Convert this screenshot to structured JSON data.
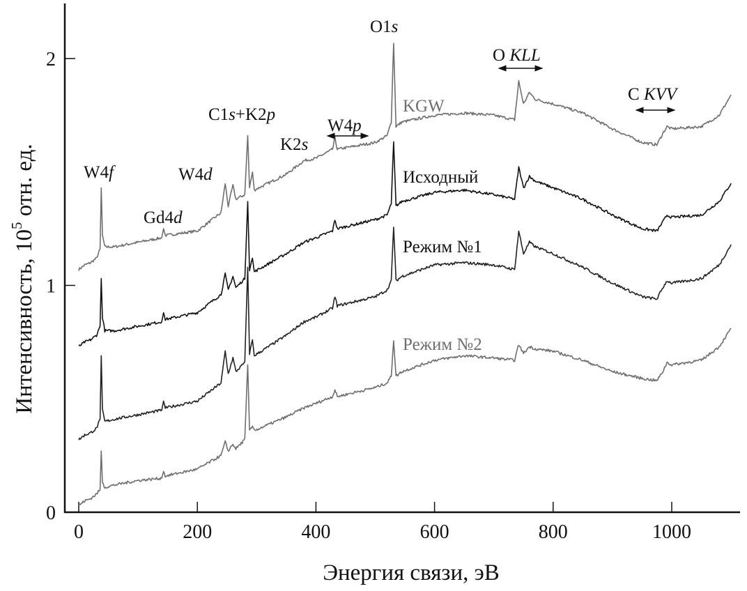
{
  "chart_data": {
    "type": "line",
    "title": "",
    "xlabel": "Энергия связи, эВ",
    "ylabel_main": "Интенсивность, 10",
    "ylabel_sup": "5",
    "ylabel_tail": " отн. ед.",
    "xlim": [
      -10,
      1110
    ],
    "ylim": [
      0,
      2.25
    ],
    "xticks": [
      0,
      200,
      400,
      600,
      800,
      1000
    ],
    "xtick_labels": [
      "0",
      "200",
      "400",
      "600",
      "800",
      "1000"
    ],
    "yticks": [
      0,
      1,
      2
    ],
    "ytick_labels": [
      "0",
      "1",
      "2"
    ],
    "grid": false,
    "series": [
      {
        "name": "KGW",
        "color": "#6e6e6e",
        "points": [
          [
            0,
            1.07
          ],
          [
            10,
            1.09
          ],
          [
            20,
            1.1
          ],
          [
            30,
            1.12
          ],
          [
            36,
            1.16
          ],
          [
            38,
            1.43
          ],
          [
            40,
            1.22
          ],
          [
            44,
            1.17
          ],
          [
            60,
            1.17
          ],
          [
            100,
            1.19
          ],
          [
            140,
            1.21
          ],
          [
            143,
            1.25
          ],
          [
            146,
            1.22
          ],
          [
            200,
            1.24
          ],
          [
            240,
            1.32
          ],
          [
            247,
            1.45
          ],
          [
            252,
            1.35
          ],
          [
            260,
            1.44
          ],
          [
            265,
            1.38
          ],
          [
            280,
            1.4
          ],
          [
            285,
            1.66
          ],
          [
            288,
            1.43
          ],
          [
            293,
            1.5
          ],
          [
            296,
            1.42
          ],
          [
            350,
            1.49
          ],
          [
            380,
            1.55
          ],
          [
            400,
            1.56
          ],
          [
            428,
            1.6
          ],
          [
            432,
            1.65
          ],
          [
            436,
            1.6
          ],
          [
            500,
            1.63
          ],
          [
            520,
            1.66
          ],
          [
            527,
            1.72
          ],
          [
            531,
            2.07
          ],
          [
            535,
            1.7
          ],
          [
            545,
            1.72
          ],
          [
            600,
            1.75
          ],
          [
            650,
            1.76
          ],
          [
            700,
            1.75
          ],
          [
            735,
            1.73
          ],
          [
            742,
            1.9
          ],
          [
            750,
            1.8
          ],
          [
            760,
            1.85
          ],
          [
            770,
            1.82
          ],
          [
            800,
            1.8
          ],
          [
            850,
            1.76
          ],
          [
            900,
            1.69
          ],
          [
            950,
            1.63
          ],
          [
            975,
            1.62
          ],
          [
            985,
            1.67
          ],
          [
            992,
            1.7
          ],
          [
            1000,
            1.69
          ],
          [
            1050,
            1.7
          ],
          [
            1080,
            1.75
          ],
          [
            1100,
            1.84
          ]
        ]
      },
      {
        "name": "Исходный",
        "color": "#111111",
        "points": [
          [
            0,
            0.73
          ],
          [
            10,
            0.75
          ],
          [
            20,
            0.76
          ],
          [
            30,
            0.78
          ],
          [
            36,
            0.82
          ],
          [
            38,
            1.03
          ],
          [
            40,
            0.86
          ],
          [
            44,
            0.8
          ],
          [
            60,
            0.8
          ],
          [
            100,
            0.82
          ],
          [
            140,
            0.84
          ],
          [
            143,
            0.88
          ],
          [
            146,
            0.85
          ],
          [
            200,
            0.88
          ],
          [
            240,
            0.96
          ],
          [
            247,
            1.05
          ],
          [
            252,
            0.98
          ],
          [
            260,
            1.04
          ],
          [
            265,
            0.99
          ],
          [
            280,
            1.03
          ],
          [
            285,
            1.37
          ],
          [
            288,
            1.07
          ],
          [
            293,
            1.12
          ],
          [
            296,
            1.06
          ],
          [
            350,
            1.14
          ],
          [
            380,
            1.19
          ],
          [
            400,
            1.21
          ],
          [
            428,
            1.24
          ],
          [
            432,
            1.29
          ],
          [
            436,
            1.25
          ],
          [
            500,
            1.29
          ],
          [
            520,
            1.31
          ],
          [
            527,
            1.36
          ],
          [
            531,
            1.63
          ],
          [
            535,
            1.35
          ],
          [
            545,
            1.37
          ],
          [
            600,
            1.41
          ],
          [
            650,
            1.42
          ],
          [
            700,
            1.4
          ],
          [
            735,
            1.38
          ],
          [
            742,
            1.52
          ],
          [
            750,
            1.43
          ],
          [
            760,
            1.48
          ],
          [
            770,
            1.46
          ],
          [
            800,
            1.43
          ],
          [
            850,
            1.38
          ],
          [
            900,
            1.31
          ],
          [
            950,
            1.25
          ],
          [
            975,
            1.24
          ],
          [
            985,
            1.28
          ],
          [
            992,
            1.31
          ],
          [
            1000,
            1.3
          ],
          [
            1050,
            1.31
          ],
          [
            1080,
            1.37
          ],
          [
            1100,
            1.45
          ]
        ]
      },
      {
        "name": "Режим №1",
        "color": "#222222",
        "points": [
          [
            0,
            0.32
          ],
          [
            10,
            0.34
          ],
          [
            20,
            0.35
          ],
          [
            30,
            0.37
          ],
          [
            36,
            0.41
          ],
          [
            38,
            0.69
          ],
          [
            40,
            0.45
          ],
          [
            44,
            0.4
          ],
          [
            60,
            0.41
          ],
          [
            100,
            0.43
          ],
          [
            140,
            0.45
          ],
          [
            143,
            0.49
          ],
          [
            146,
            0.46
          ],
          [
            200,
            0.49
          ],
          [
            240,
            0.57
          ],
          [
            247,
            0.71
          ],
          [
            252,
            0.61
          ],
          [
            260,
            0.68
          ],
          [
            265,
            0.62
          ],
          [
            280,
            0.66
          ],
          [
            285,
            1.08
          ],
          [
            288,
            0.7
          ],
          [
            293,
            0.76
          ],
          [
            296,
            0.69
          ],
          [
            350,
            0.78
          ],
          [
            380,
            0.84
          ],
          [
            400,
            0.86
          ],
          [
            428,
            0.9
          ],
          [
            432,
            0.95
          ],
          [
            436,
            0.91
          ],
          [
            500,
            0.95
          ],
          [
            520,
            0.98
          ],
          [
            527,
            1.02
          ],
          [
            531,
            1.26
          ],
          [
            535,
            1.02
          ],
          [
            545,
            1.04
          ],
          [
            600,
            1.09
          ],
          [
            650,
            1.1
          ],
          [
            700,
            1.09
          ],
          [
            735,
            1.07
          ],
          [
            742,
            1.24
          ],
          [
            750,
            1.14
          ],
          [
            760,
            1.19
          ],
          [
            770,
            1.17
          ],
          [
            800,
            1.14
          ],
          [
            850,
            1.08
          ],
          [
            900,
            1.01
          ],
          [
            950,
            0.95
          ],
          [
            975,
            0.94
          ],
          [
            985,
            0.99
          ],
          [
            992,
            1.02
          ],
          [
            1000,
            1.01
          ],
          [
            1050,
            1.03
          ],
          [
            1080,
            1.09
          ],
          [
            1100,
            1.18
          ]
        ]
      },
      {
        "name": "Режим №2",
        "color": "#6e6e6e",
        "points": [
          [
            0,
            0.03
          ],
          [
            10,
            0.05
          ],
          [
            20,
            0.06
          ],
          [
            30,
            0.08
          ],
          [
            36,
            0.1
          ],
          [
            38,
            0.27
          ],
          [
            40,
            0.13
          ],
          [
            44,
            0.11
          ],
          [
            60,
            0.12
          ],
          [
            100,
            0.14
          ],
          [
            140,
            0.15
          ],
          [
            143,
            0.18
          ],
          [
            146,
            0.16
          ],
          [
            200,
            0.19
          ],
          [
            240,
            0.25
          ],
          [
            247,
            0.31
          ],
          [
            252,
            0.27
          ],
          [
            260,
            0.3
          ],
          [
            265,
            0.28
          ],
          [
            280,
            0.32
          ],
          [
            285,
            0.65
          ],
          [
            288,
            0.36
          ],
          [
            293,
            0.38
          ],
          [
            296,
            0.36
          ],
          [
            350,
            0.42
          ],
          [
            380,
            0.46
          ],
          [
            400,
            0.48
          ],
          [
            428,
            0.51
          ],
          [
            432,
            0.54
          ],
          [
            436,
            0.51
          ],
          [
            500,
            0.55
          ],
          [
            520,
            0.57
          ],
          [
            527,
            0.6
          ],
          [
            531,
            0.76
          ],
          [
            535,
            0.6
          ],
          [
            545,
            0.62
          ],
          [
            600,
            0.67
          ],
          [
            650,
            0.69
          ],
          [
            700,
            0.68
          ],
          [
            735,
            0.67
          ],
          [
            742,
            0.74
          ],
          [
            750,
            0.7
          ],
          [
            760,
            0.73
          ],
          [
            770,
            0.72
          ],
          [
            800,
            0.71
          ],
          [
            850,
            0.67
          ],
          [
            900,
            0.62
          ],
          [
            950,
            0.59
          ],
          [
            975,
            0.58
          ],
          [
            985,
            0.62
          ],
          [
            992,
            0.66
          ],
          [
            1000,
            0.65
          ],
          [
            1050,
            0.67
          ],
          [
            1080,
            0.73
          ],
          [
            1100,
            0.81
          ]
        ]
      }
    ],
    "annotations": [
      {
        "main": "W4",
        "ital": "f"
      },
      {
        "main": "Gd4",
        "ital": "d"
      },
      {
        "main": "W4",
        "ital": "d"
      },
      {
        "main": "C1",
        "ital": "s",
        "main2": "+K2",
        "ital2": "p"
      },
      {
        "main": "K2",
        "ital": "s"
      },
      {
        "main": "W4",
        "ital": "p"
      },
      {
        "main": "O1",
        "ital": "s"
      },
      {
        "main": "O ",
        "ital": "KLL"
      },
      {
        "main": "C ",
        "ital": "KVV"
      }
    ]
  }
}
